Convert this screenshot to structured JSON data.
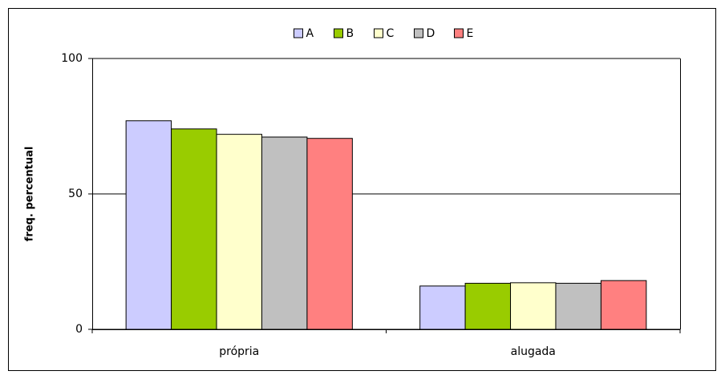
{
  "chart_data": {
    "type": "bar",
    "y_label": "freq. percentual",
    "categories": [
      "própria",
      "alugada"
    ],
    "series": [
      {
        "name": "A",
        "color": "#ccccff",
        "values": [
          77,
          16
        ]
      },
      {
        "name": "B",
        "color": "#99cc00",
        "values": [
          74,
          17
        ]
      },
      {
        "name": "C",
        "color": "#ffffcc",
        "values": [
          72,
          17.2
        ]
      },
      {
        "name": "D",
        "color": "#c0c0c0",
        "values": [
          71,
          17
        ]
      },
      {
        "name": "E",
        "color": "#ff8080",
        "values": [
          70.5,
          18
        ]
      }
    ],
    "ylim": [
      0,
      100
    ],
    "yticks": [
      0,
      50,
      100
    ],
    "grid": true,
    "legend": "top"
  }
}
